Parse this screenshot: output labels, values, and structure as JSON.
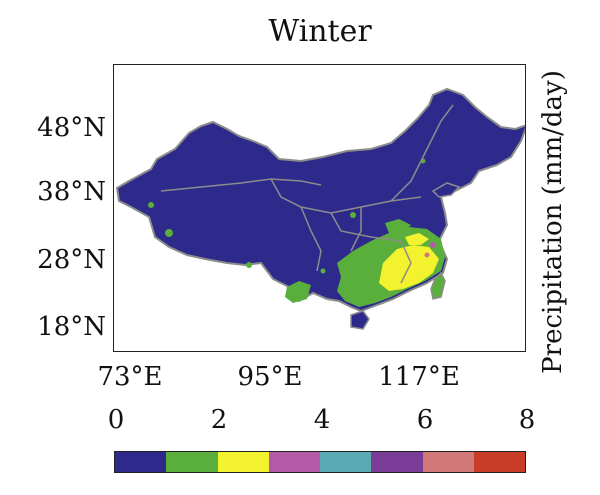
{
  "title": "Winter",
  "colorbar_label": "Precipitation (mm/day)",
  "lat_labels": [
    "48°N",
    "38°N",
    "28°N",
    "18°N"
  ],
  "lon_labels": [
    "73°E",
    "95°E",
    "117°E"
  ],
  "colorbar_ticks": [
    "0",
    "2",
    "4",
    "6",
    "8"
  ],
  "colors": {
    "land_low": "#2e2a8c",
    "boundary": "#8c8c8c",
    "bins": [
      "#2e2a8c",
      "#5aae3c",
      "#f2f22e",
      "#b45aa8",
      "#5aaab4",
      "#7a3c96",
      "#d27878",
      "#c83c28"
    ]
  },
  "chart_data": {
    "type": "heatmap",
    "title": "Winter",
    "variable": "Precipitation (mm/day)",
    "colorbar_range": [
      0,
      8
    ],
    "colorbar_ticks": [
      0,
      2,
      4,
      6,
      8
    ],
    "bin_width": 1,
    "lat_ticks": [
      "48°N",
      "38°N",
      "28°N",
      "18°N"
    ],
    "lon_ticks": [
      "73°E",
      "95°E",
      "117°E"
    ]
  }
}
